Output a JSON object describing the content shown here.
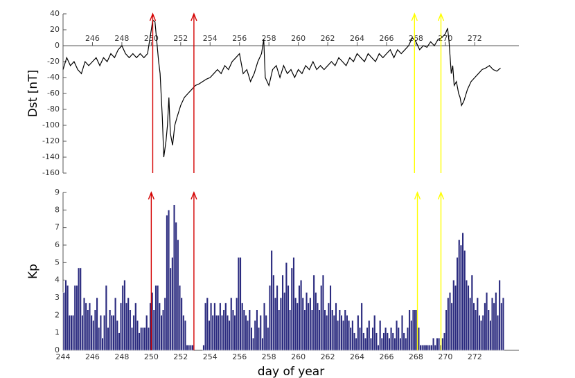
{
  "chart_data": [
    {
      "type": "line",
      "y_label": "Dst [nT]",
      "color": "#000000",
      "xlim": [
        244,
        275
      ],
      "xticks": [
        246,
        248,
        250,
        252,
        254,
        256,
        258,
        260,
        262,
        264,
        266,
        268,
        270,
        272
      ],
      "ylim": [
        -160,
        40
      ],
      "yticks": [
        -160,
        -140,
        -120,
        -100,
        -80,
        -60,
        -40,
        -20,
        0,
        20,
        40
      ],
      "x": [
        244,
        244.25,
        244.5,
        244.75,
        245,
        245.25,
        245.5,
        245.75,
        246,
        246.25,
        246.5,
        246.75,
        247,
        247.25,
        247.5,
        247.75,
        248,
        248.25,
        248.5,
        248.75,
        249,
        249.25,
        249.5,
        249.75,
        250,
        250.1,
        250.25,
        250.5,
        250.6,
        250.75,
        250.85,
        251,
        251.1,
        251.2,
        251.3,
        251.45,
        251.6,
        251.75,
        252,
        252.25,
        252.5,
        252.75,
        253,
        253.25,
        253.5,
        253.75,
        254,
        254.25,
        254.5,
        254.75,
        255,
        255.25,
        255.5,
        255.75,
        256,
        256.25,
        256.5,
        256.75,
        257,
        257.25,
        257.5,
        257.65,
        257.75,
        258,
        258.25,
        258.5,
        258.75,
        259,
        259.25,
        259.5,
        259.75,
        260,
        260.25,
        260.5,
        260.75,
        261,
        261.25,
        261.5,
        261.75,
        262,
        262.25,
        262.5,
        262.75,
        263,
        263.25,
        263.5,
        263.75,
        264,
        264.25,
        264.5,
        264.75,
        265,
        265.25,
        265.5,
        265.75,
        266,
        266.25,
        266.5,
        266.75,
        267,
        267.25,
        267.5,
        267.75,
        268,
        268.25,
        268.5,
        268.75,
        269,
        269.25,
        269.5,
        269.75,
        270,
        270.15,
        270.25,
        270.4,
        270.5,
        270.6,
        270.75,
        270.9,
        271,
        271.1,
        271.25,
        271.5,
        271.75,
        272,
        272.25,
        272.5,
        272.75,
        273,
        273.25,
        273.5,
        273.75
      ],
      "values": [
        -30,
        -15,
        -25,
        -20,
        -30,
        -35,
        -20,
        -25,
        -20,
        -15,
        -25,
        -15,
        -20,
        -10,
        -15,
        -5,
        0,
        -10,
        -15,
        -10,
        -15,
        -10,
        -15,
        -10,
        20,
        32,
        30,
        -20,
        -35,
        -90,
        -140,
        -120,
        -100,
        -65,
        -110,
        -125,
        -100,
        -90,
        -75,
        -65,
        -60,
        -55,
        -50,
        -48,
        -45,
        -42,
        -40,
        -35,
        -30,
        -35,
        -25,
        -30,
        -20,
        -15,
        -10,
        -35,
        -30,
        -45,
        -35,
        -20,
        -10,
        8,
        -40,
        -50,
        -30,
        -25,
        -40,
        -25,
        -35,
        -30,
        -40,
        -30,
        -35,
        -25,
        -30,
        -20,
        -30,
        -25,
        -30,
        -25,
        -20,
        -25,
        -15,
        -20,
        -25,
        -15,
        -20,
        -10,
        -15,
        -20,
        -10,
        -15,
        -20,
        -10,
        -15,
        -10,
        -5,
        -15,
        -5,
        -10,
        -5,
        0,
        10,
        5,
        -5,
        0,
        -2,
        5,
        0,
        8,
        10,
        15,
        22,
        5,
        -35,
        -25,
        -50,
        -45,
        -60,
        -65,
        -75,
        -70,
        -55,
        -45,
        -40,
        -35,
        -30,
        -28,
        -25,
        -30,
        -32,
        -28
      ],
      "arrows": [
        {
          "x": 250.1,
          "color": "#d40000"
        },
        {
          "x": 252.9,
          "color": "#d40000"
        },
        {
          "x": 267.9,
          "color": "#ffff00"
        },
        {
          "x": 269.7,
          "color": "#ffff00"
        }
      ]
    },
    {
      "type": "bar",
      "y_label": "Kp",
      "x_label": "day of year",
      "color": "#2b2b7f",
      "xlim": [
        244,
        275
      ],
      "xticks": [
        244,
        246,
        248,
        250,
        252,
        254,
        256,
        258,
        260,
        262,
        264,
        266,
        268,
        270,
        272
      ],
      "ylim": [
        0,
        9
      ],
      "yticks": [
        0,
        1,
        2,
        3,
        4,
        5,
        6,
        7,
        8,
        9
      ],
      "x": [
        244,
        244.125,
        244.25,
        244.375,
        244.5,
        244.625,
        244.75,
        244.875,
        245,
        245.125,
        245.25,
        245.375,
        245.5,
        245.625,
        245.75,
        245.875,
        246,
        246.125,
        246.25,
        246.375,
        246.5,
        246.625,
        246.75,
        246.875,
        247,
        247.125,
        247.25,
        247.375,
        247.5,
        247.625,
        247.75,
        247.875,
        248,
        248.125,
        248.25,
        248.375,
        248.5,
        248.625,
        248.75,
        248.875,
        249,
        249.125,
        249.25,
        249.375,
        249.5,
        249.625,
        249.75,
        249.875,
        250,
        250.125,
        250.25,
        250.375,
        250.5,
        250.625,
        250.75,
        250.875,
        251,
        251.125,
        251.25,
        251.375,
        251.5,
        251.625,
        251.75,
        251.875,
        252,
        252.125,
        252.25,
        252.375,
        252.5,
        252.625,
        252.75,
        252.875,
        253,
        253.125,
        253.25,
        253.375,
        253.5,
        253.625,
        253.75,
        253.875,
        254,
        254.125,
        254.25,
        254.375,
        254.5,
        254.625,
        254.75,
        254.875,
        255,
        255.125,
        255.25,
        255.375,
        255.5,
        255.625,
        255.75,
        255.875,
        256,
        256.125,
        256.25,
        256.375,
        256.5,
        256.625,
        256.75,
        256.875,
        257,
        257.125,
        257.25,
        257.375,
        257.5,
        257.625,
        257.75,
        257.875,
        258,
        258.125,
        258.25,
        258.375,
        258.5,
        258.625,
        258.75,
        258.875,
        259,
        259.125,
        259.25,
        259.375,
        259.5,
        259.625,
        259.75,
        259.875,
        260,
        260.125,
        260.25,
        260.375,
        260.5,
        260.625,
        260.75,
        260.875,
        261,
        261.125,
        261.25,
        261.375,
        261.5,
        261.625,
        261.75,
        261.875,
        262,
        262.125,
        262.25,
        262.375,
        262.5,
        262.625,
        262.75,
        262.875,
        263,
        263.125,
        263.25,
        263.375,
        263.5,
        263.625,
        263.75,
        263.875,
        264,
        264.125,
        264.25,
        264.375,
        264.5,
        264.625,
        264.75,
        264.875,
        265,
        265.125,
        265.25,
        265.375,
        265.5,
        265.625,
        265.75,
        265.875,
        266,
        266.125,
        266.25,
        266.375,
        266.5,
        266.625,
        266.75,
        266.875,
        267,
        267.125,
        267.25,
        267.375,
        267.5,
        267.625,
        267.75,
        267.875,
        268,
        268.125,
        268.25,
        268.375,
        268.5,
        268.625,
        268.75,
        268.875,
        269,
        269.125,
        269.25,
        269.375,
        269.5,
        269.625,
        269.75,
        269.875,
        270,
        270.125,
        270.25,
        270.375,
        270.5,
        270.625,
        270.75,
        270.875,
        271,
        271.125,
        271.25,
        271.375,
        271.5,
        271.625,
        271.75,
        271.875,
        272,
        272.125,
        272.25,
        272.375,
        272.5,
        272.625,
        272.75,
        272.875,
        273,
        273.125,
        273.25,
        273.375,
        273.5,
        273.625,
        273.75,
        273.875
      ],
      "values": [
        3.3,
        4,
        3.7,
        2,
        2,
        2,
        3.7,
        3.7,
        4.7,
        4.7,
        2,
        3,
        2.7,
        2.3,
        2.7,
        2,
        1.7,
        2.3,
        3,
        1.3,
        2,
        0.7,
        2,
        3.7,
        1.3,
        2.3,
        2,
        2,
        3,
        1.7,
        1,
        2.7,
        3.7,
        4,
        2.7,
        3,
        2.3,
        1.3,
        2,
        2.7,
        1.7,
        1,
        1.3,
        1.3,
        1.3,
        2,
        1.3,
        2.7,
        3.3,
        2.3,
        3.7,
        3.7,
        2.7,
        2,
        2.3,
        3,
        7.7,
        8,
        4.7,
        5.3,
        8.3,
        7.3,
        6.3,
        3.7,
        3,
        2,
        1.7,
        0.3,
        0.3,
        0.3,
        0.3,
        0,
        0,
        0,
        0,
        0,
        0.3,
        2.7,
        3,
        1.7,
        2.7,
        2,
        2.7,
        2,
        2,
        2.7,
        2,
        2.3,
        2.7,
        2,
        1.7,
        3,
        2.3,
        2,
        3,
        5.3,
        5.3,
        2.7,
        2.3,
        2,
        1.7,
        2.3,
        1.3,
        0.7,
        1.7,
        2.3,
        1.3,
        2,
        0.7,
        2.7,
        2,
        1.3,
        3.7,
        5.7,
        4.3,
        3,
        3.7,
        2.3,
        3,
        4.3,
        3.3,
        5,
        3.7,
        2.3,
        4.7,
        5.3,
        3,
        2.7,
        3.7,
        4,
        3,
        2.3,
        3.3,
        2.7,
        3,
        2.3,
        4.3,
        3.3,
        2.7,
        2.3,
        3.7,
        4.3,
        2.3,
        2,
        2.7,
        3.7,
        2.3,
        2,
        2.7,
        1.7,
        2.3,
        2,
        1.7,
        2.3,
        2,
        1.7,
        1.3,
        1.7,
        1,
        0.7,
        2,
        1.3,
        2.7,
        1,
        0.7,
        1.3,
        1.7,
        0.7,
        1.3,
        2,
        1,
        0.3,
        1.7,
        0.7,
        1,
        1.3,
        1,
        0.7,
        1.3,
        1,
        0.7,
        1.7,
        1.3,
        0.7,
        2,
        1,
        0.7,
        1.3,
        2.3,
        1.7,
        2.3,
        2.3,
        2.3,
        1.3,
        0.3,
        0.3,
        0.3,
        0.3,
        0.3,
        0.3,
        0.3,
        0.7,
        0.3,
        0.7,
        0.7,
        0.3,
        0.7,
        1,
        2.3,
        3,
        3.3,
        2.7,
        4,
        3.7,
        5.3,
        6.3,
        6,
        6.7,
        5.7,
        4,
        3.7,
        3,
        4.3,
        2.7,
        2.3,
        3,
        2,
        1.7,
        2,
        2.7,
        3.3,
        2.3,
        1.7,
        3,
        2.7,
        3.3,
        2,
        4,
        2.7,
        3
      ],
      "arrows": [
        {
          "x": 250,
          "color": "#d40000"
        },
        {
          "x": 252.9,
          "color": "#d40000"
        },
        {
          "x": 268.1,
          "color": "#ffff00"
        },
        {
          "x": 269.7,
          "color": "#ffff00"
        }
      ]
    }
  ]
}
